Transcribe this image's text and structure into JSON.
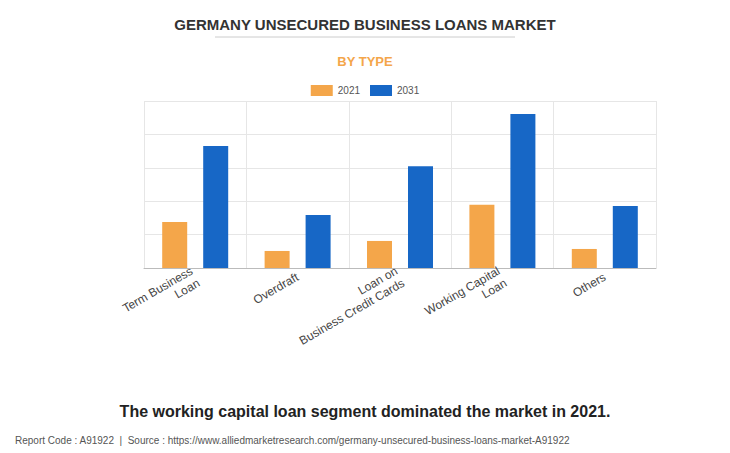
{
  "chart_data": {
    "type": "bar",
    "title": "GERMANY UNSECURED BUSINESS LOANS MARKET",
    "subtitle": "BY TYPE",
    "categories": [
      "Term Business\nLoan",
      "Overdraft",
      "Loan on\nBusiness Credit Cards",
      "Working Capital\nLoan",
      "Others"
    ],
    "series": [
      {
        "name": "2021",
        "color": "#f4a64a",
        "values": [
          1.38,
          0.51,
          0.81,
          1.89,
          0.57
        ]
      },
      {
        "name": "2031",
        "color": "#1767c6",
        "values": [
          3.65,
          1.59,
          3.05,
          4.61,
          1.86
        ]
      }
    ],
    "ylim": [
      0,
      5
    ],
    "yticks": [
      0,
      1,
      2,
      3,
      4,
      5
    ],
    "grid": true,
    "legend": "top",
    "tick_labels": "x",
    "data_labels": false,
    "annotations": [
      "The working capital loan segment dominated the market in 2021.",
      "Report Code : A91922  |  Source : https://www.alliedmarketresearch.com/germany-unsecured-business-loans-market-A91922"
    ]
  }
}
